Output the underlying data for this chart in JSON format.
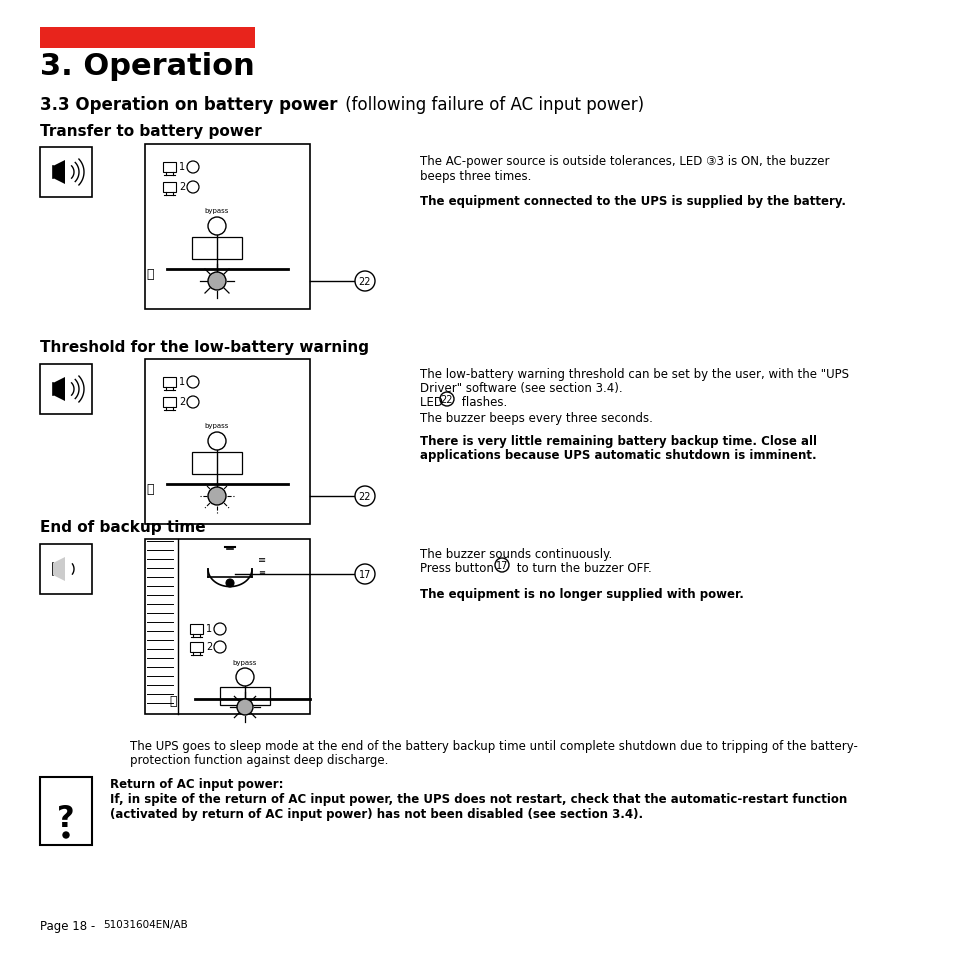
{
  "bg_color": "#ffffff",
  "page_width": 9.54,
  "page_height": 9.54,
  "red_bar_color": "#e8241c",
  "title": "3. Operation",
  "subtitle_bold": "3.3 Operation on battery power",
  "subtitle_normal": " (following failure of AC input power)",
  "section1_head": "Transfer to battery power",
  "section2_head": "Threshold for the low-battery warning",
  "section3_head": "End of backup time",
  "section1_text1": "The AC-power source is outside tolerances, LED ③3 is ON, the buzzer",
  "section1_text2": "beeps three times.",
  "section1_bold": "The equipment connected to the UPS is supplied by the battery.",
  "section2_text1": "The low-battery warning threshold can be set by the user, with the \"UPS",
  "section2_text2": "Driver\" software (see section 3.4).",
  "section2_text3_pre": "LED ",
  "section2_text3_circle": "22",
  "section2_text3_post": " flashes.",
  "section2_text4": "The buzzer beeps every three seconds.",
  "section2_bold1": "There is very little remaining battery backup time. Close all",
  "section2_bold2": "applications because UPS automatic shutdown is imminent.",
  "section3_text1": "The buzzer sounds continuously.",
  "section3_text2_pre": "Press button ",
  "section3_text2_circle": "17",
  "section3_text2_post": " to turn the buzzer OFF.",
  "section3_bold": "The equipment is no longer supplied with power.",
  "note_text1": "The UPS goes to sleep mode at the end of the battery backup time until complete shutdown due to tripping of the battery-",
  "note_text2": "protection function against deep discharge.",
  "warning_head": "Return of AC input power:",
  "warning_bold1": "If, in spite of the return of AC input power, the UPS does not restart, check that the automatic-restart function",
  "warning_bold2": "(activated by return of AC input power) has not been disabled (see section 3.4).",
  "footer_normal": "Page 18 - ",
  "footer_small": "51031604EN/AB"
}
